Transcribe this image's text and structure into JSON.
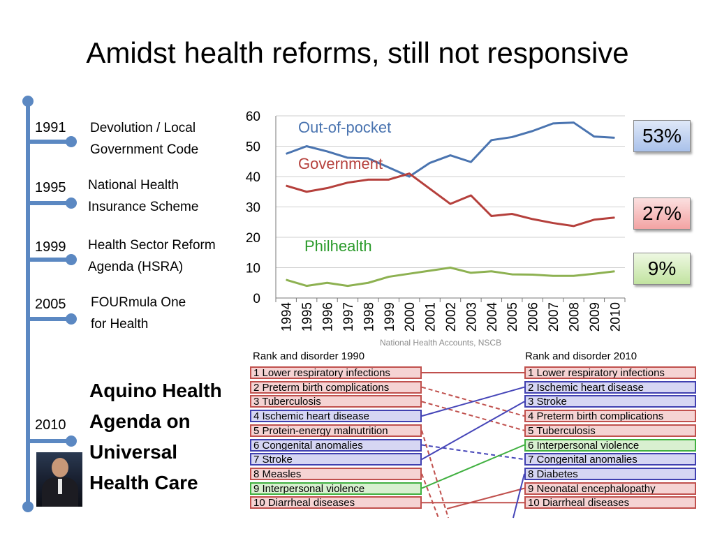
{
  "title": "Amidst health reforms, still not responsive",
  "timeline": [
    {
      "year": "1991",
      "label_lines": [
        "Devolution / Local",
        "Government Code"
      ]
    },
    {
      "year": "1995",
      "label_lines": [
        "National Health",
        "Insurance Scheme"
      ]
    },
    {
      "year": "1999",
      "label_lines": [
        "Health Sector Reform",
        "Agenda (HSRA)"
      ]
    },
    {
      "year": "2005",
      "label_lines": [
        "FOURmula One",
        "for Health"
      ]
    },
    {
      "year": "2010",
      "label_lines": [
        "Aquino Health",
        "Agenda on",
        "Universal",
        "Health Care"
      ]
    }
  ],
  "colors": {
    "oop": "#4a74b0",
    "gov": "#b5403c",
    "phil": "#8db151",
    "timeline": "#5b88c2"
  },
  "chart_data": [
    {
      "type": "line",
      "x": [
        "1994",
        "1995",
        "1996",
        "1997",
        "1998",
        "1999",
        "2000",
        "2001",
        "2002",
        "2003",
        "2004",
        "2005",
        "2006",
        "2007",
        "2008",
        "2009",
        "2010"
      ],
      "ylim": [
        0,
        60
      ],
      "yticks": [
        "0",
        "10",
        "20",
        "30",
        "40",
        "50",
        "60"
      ],
      "series": [
        {
          "name": "Out-of-pocket",
          "color": "#4a74b0",
          "values": [
            47.5,
            50,
            48.3,
            46.2,
            46,
            43,
            40,
            44.5,
            47,
            44.8,
            52,
            53,
            55,
            57.5,
            57.8,
            53.2,
            52.8
          ]
        },
        {
          "name": "Government",
          "color": "#b5403c",
          "values": [
            37,
            35,
            36.2,
            38,
            39,
            39,
            41,
            36,
            31,
            33.8,
            27,
            27.7,
            26,
            24.7,
            23.7,
            25.8,
            26.5
          ]
        },
        {
          "name": "Philhealth",
          "color": "#2a9a2a",
          "line_color": "#8db151",
          "values": [
            6,
            4,
            5,
            4,
            5,
            7,
            8,
            9,
            10,
            8.3,
            8.8,
            7.8,
            7.7,
            7.3,
            7.3,
            8,
            8.8
          ]
        }
      ],
      "end_labels": [
        "53%",
        "27%",
        "9%"
      ],
      "source": "National Health Accounts, NSCB"
    },
    {
      "type": "table",
      "header_left": "Rank and disorder 1990",
      "header_right": "Rank and disorder 2010",
      "left": [
        {
          "text": "1 Lower respiratory infections",
          "cat": "red"
        },
        {
          "text": "2 Preterm birth complications",
          "cat": "red"
        },
        {
          "text": "3 Tuberculosis",
          "cat": "red"
        },
        {
          "text": "4 Ischemic heart disease",
          "cat": "blue"
        },
        {
          "text": "5 Protein-energy malnutrition",
          "cat": "red"
        },
        {
          "text": "6 Congenital anomalies",
          "cat": "blue"
        },
        {
          "text": "7 Stroke",
          "cat": "blue"
        },
        {
          "text": "8 Measles",
          "cat": "red"
        },
        {
          "text": "9 Interpersonal violence",
          "cat": "green"
        },
        {
          "text": "10 Diarrheal diseases",
          "cat": "red"
        }
      ],
      "right": [
        {
          "text": "1 Lower respiratory infections",
          "cat": "red"
        },
        {
          "text": "2 Ischemic heart disease",
          "cat": "blue"
        },
        {
          "text": "3 Stroke",
          "cat": "blue"
        },
        {
          "text": "4 Preterm birth complications",
          "cat": "red"
        },
        {
          "text": "5 Tuberculosis",
          "cat": "red"
        },
        {
          "text": "6 Interpersonal violence",
          "cat": "green"
        },
        {
          "text": "7 Congenital anomalies",
          "cat": "blue"
        },
        {
          "text": "8 Diabetes",
          "cat": "blue"
        },
        {
          "text": "9 Neonatal encephalopathy",
          "cat": "red"
        },
        {
          "text": "10 Diarrheal diseases",
          "cat": "red"
        }
      ],
      "links": [
        {
          "from": 1,
          "to": 1,
          "cat": "red",
          "dashed": false
        },
        {
          "from": 2,
          "to": 4,
          "cat": "red",
          "dashed": true
        },
        {
          "from": 3,
          "to": 5,
          "cat": "red",
          "dashed": true
        },
        {
          "from": 4,
          "to": 2,
          "cat": "blue",
          "dashed": false
        },
        {
          "from": 6,
          "to": 7,
          "cat": "blue",
          "dashed": true
        },
        {
          "from": 7,
          "to": 3,
          "cat": "blue",
          "dashed": false
        },
        {
          "from": 9,
          "to": 6,
          "cat": "green",
          "dashed": false
        },
        {
          "from": 10,
          "to": 10,
          "cat": "red",
          "dashed": false
        }
      ],
      "palette": {
        "red": {
          "fill": "#f5d3d3",
          "border": "#c0504d",
          "line": "#c0504d"
        },
        "blue": {
          "fill": "#d6d6f3",
          "border": "#4040b0",
          "line": "#4545b8"
        },
        "green": {
          "fill": "#d8f0d0",
          "border": "#40b040",
          "line": "#40b040"
        }
      }
    }
  ]
}
